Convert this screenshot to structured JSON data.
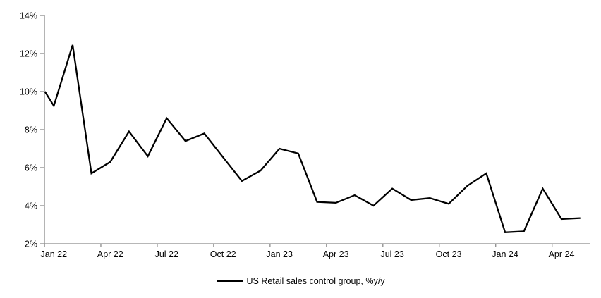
{
  "chart_data": {
    "type": "line",
    "title": "",
    "grid": false,
    "background": "#ffffff",
    "axis_color": "#8c8c8c",
    "legend": {
      "label": "US Retail sales control group, %y/y",
      "position": "bottom-center"
    },
    "y_axis": {
      "min": 2,
      "max": 14,
      "step": 2,
      "unit": "%",
      "tick_labels": [
        "2%",
        "4%",
        "6%",
        "8%",
        "10%",
        "12%",
        "14%"
      ]
    },
    "x_axis": {
      "tick_labels": [
        "Jan 22",
        "Apr 22",
        "Jul 22",
        "Oct 22",
        "Jan 23",
        "Apr 23",
        "Jul 23",
        "Oct 23",
        "Jan 24",
        "Apr 24"
      ],
      "label_every_n_points": 3
    },
    "lead_in_value_at_axis": 10.0,
    "series": [
      {
        "name": "US Retail sales control group, %y/y",
        "color": "#000000",
        "x": [
          "Jan 22",
          "Feb 22",
          "Mar 22",
          "Apr 22",
          "May 22",
          "Jun 22",
          "Jul 22",
          "Aug 22",
          "Sep 22",
          "Oct 22",
          "Nov 22",
          "Dec 22",
          "Jan 23",
          "Feb 23",
          "Mar 23",
          "Apr 23",
          "May 23",
          "Jun 23",
          "Jul 23",
          "Aug 23",
          "Sep 23",
          "Oct 23",
          "Nov 23",
          "Dec 23",
          "Jan 24",
          "Feb 24",
          "Mar 24",
          "Apr 24",
          "May 24"
        ],
        "values": [
          9.25,
          12.45,
          5.7,
          6.3,
          7.9,
          6.6,
          8.6,
          7.4,
          7.8,
          6.55,
          5.3,
          5.85,
          7.0,
          6.75,
          4.2,
          4.15,
          4.55,
          4.0,
          4.9,
          4.3,
          4.4,
          4.1,
          5.05,
          5.7,
          2.6,
          2.65,
          4.9,
          3.3,
          3.35
        ]
      }
    ]
  }
}
